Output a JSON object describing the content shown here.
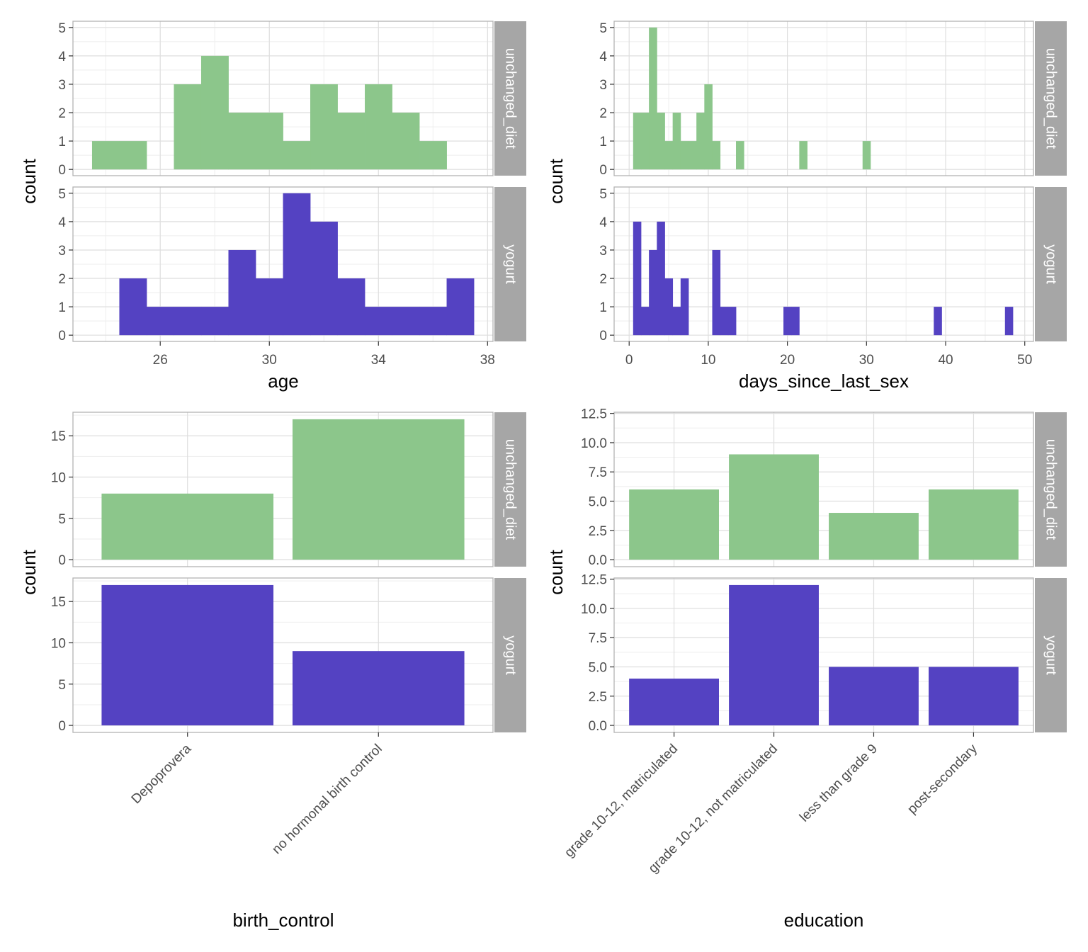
{
  "colors": {
    "unchanged_diet": "#8CC68B",
    "yogurt": "#5442C2",
    "strip": "#A6A6A6",
    "panel_border": "#B3B3B3",
    "grid_major": "#DEDEDE",
    "grid_minor": "#EEEEEE"
  },
  "chart_data": [
    {
      "type": "bar",
      "subtype": "histogram",
      "xlabel": "age",
      "ylabel": "count",
      "xlim": [
        22.8,
        38.2
      ],
      "ylim": [
        -0.22,
        5.22
      ],
      "x_ticks": [
        26,
        30,
        34,
        38
      ],
      "y_ticks": [
        0,
        1,
        2,
        3,
        4,
        5
      ],
      "bin_width": 1,
      "facets": [
        {
          "strip": "unchanged_diet",
          "color_key": "unchanged_diet",
          "bins": [
            {
              "x": 24,
              "count": 1
            },
            {
              "x": 25,
              "count": 1
            },
            {
              "x": 26,
              "count": 0
            },
            {
              "x": 27,
              "count": 3
            },
            {
              "x": 28,
              "count": 4
            },
            {
              "x": 29,
              "count": 2
            },
            {
              "x": 30,
              "count": 2
            },
            {
              "x": 31,
              "count": 1
            },
            {
              "x": 32,
              "count": 3
            },
            {
              "x": 33,
              "count": 2
            },
            {
              "x": 34,
              "count": 3
            },
            {
              "x": 35,
              "count": 2
            },
            {
              "x": 36,
              "count": 1
            }
          ]
        },
        {
          "strip": "yogurt",
          "color_key": "yogurt",
          "bins": [
            {
              "x": 25,
              "count": 2
            },
            {
              "x": 26,
              "count": 1
            },
            {
              "x": 27,
              "count": 1
            },
            {
              "x": 28,
              "count": 1
            },
            {
              "x": 29,
              "count": 3
            },
            {
              "x": 30,
              "count": 2
            },
            {
              "x": 31,
              "count": 5
            },
            {
              "x": 32,
              "count": 4
            },
            {
              "x": 33,
              "count": 2
            },
            {
              "x": 34,
              "count": 1
            },
            {
              "x": 35,
              "count": 1
            },
            {
              "x": 36,
              "count": 1
            },
            {
              "x": 37,
              "count": 2
            }
          ]
        }
      ]
    },
    {
      "type": "bar",
      "subtype": "histogram",
      "xlabel": "days_since_last_sex",
      "ylabel": "count",
      "xlim": [
        -1.9,
        51.1
      ],
      "ylim": [
        -0.22,
        5.22
      ],
      "x_ticks": [
        0,
        10,
        20,
        30,
        40,
        50
      ],
      "y_ticks": [
        0,
        1,
        2,
        3,
        4,
        5
      ],
      "bin_width": 1,
      "facets": [
        {
          "strip": "unchanged_diet",
          "color_key": "unchanged_diet",
          "bins": [
            {
              "x": 1,
              "count": 2
            },
            {
              "x": 2,
              "count": 2
            },
            {
              "x": 3,
              "count": 5
            },
            {
              "x": 4,
              "count": 2
            },
            {
              "x": 5,
              "count": 1
            },
            {
              "x": 6,
              "count": 2
            },
            {
              "x": 7,
              "count": 1
            },
            {
              "x": 8,
              "count": 1
            },
            {
              "x": 9,
              "count": 2
            },
            {
              "x": 10,
              "count": 3
            },
            {
              "x": 11,
              "count": 1
            },
            {
              "x": 14,
              "count": 1
            },
            {
              "x": 22,
              "count": 1
            },
            {
              "x": 30,
              "count": 1
            }
          ]
        },
        {
          "strip": "yogurt",
          "color_key": "yogurt",
          "bins": [
            {
              "x": 1,
              "count": 4
            },
            {
              "x": 2,
              "count": 1
            },
            {
              "x": 3,
              "count": 3
            },
            {
              "x": 4,
              "count": 4
            },
            {
              "x": 5,
              "count": 2
            },
            {
              "x": 6,
              "count": 1
            },
            {
              "x": 7,
              "count": 2
            },
            {
              "x": 11,
              "count": 3
            },
            {
              "x": 12,
              "count": 1
            },
            {
              "x": 13,
              "count": 1
            },
            {
              "x": 20,
              "count": 1
            },
            {
              "x": 21,
              "count": 1
            },
            {
              "x": 39,
              "count": 1
            },
            {
              "x": 48,
              "count": 1
            }
          ]
        }
      ]
    },
    {
      "type": "bar",
      "xlabel": "birth_control",
      "ylabel": "count",
      "categories": [
        "Depoprovera",
        "no hormonal birth control"
      ],
      "ylim": [
        -0.85,
        17.85
      ],
      "y_ticks": [
        0,
        5,
        10,
        15
      ],
      "facets": [
        {
          "strip": "unchanged_diet",
          "color_key": "unchanged_diet",
          "values": [
            8,
            17
          ]
        },
        {
          "strip": "yogurt",
          "color_key": "yogurt",
          "values": [
            17,
            9
          ]
        }
      ]
    },
    {
      "type": "bar",
      "xlabel": "education",
      "ylabel": "count",
      "categories": [
        "grade 10-12, matriculated",
        "grade 10-12, not matriculated",
        "less than grade 9",
        "post-secondary"
      ],
      "ylim": [
        -0.6,
        12.6
      ],
      "y_ticks": [
        0,
        2.5,
        5,
        7.5,
        10,
        12.5
      ],
      "y_tick_labels": [
        "0.0",
        "2.5",
        "5.0",
        "7.5",
        "10.0",
        "12.5"
      ],
      "facets": [
        {
          "strip": "unchanged_diet",
          "color_key": "unchanged_diet",
          "values": [
            6,
            9,
            4,
            6
          ]
        },
        {
          "strip": "yogurt",
          "color_key": "yogurt",
          "values": [
            4,
            12,
            5,
            5
          ]
        }
      ]
    }
  ]
}
